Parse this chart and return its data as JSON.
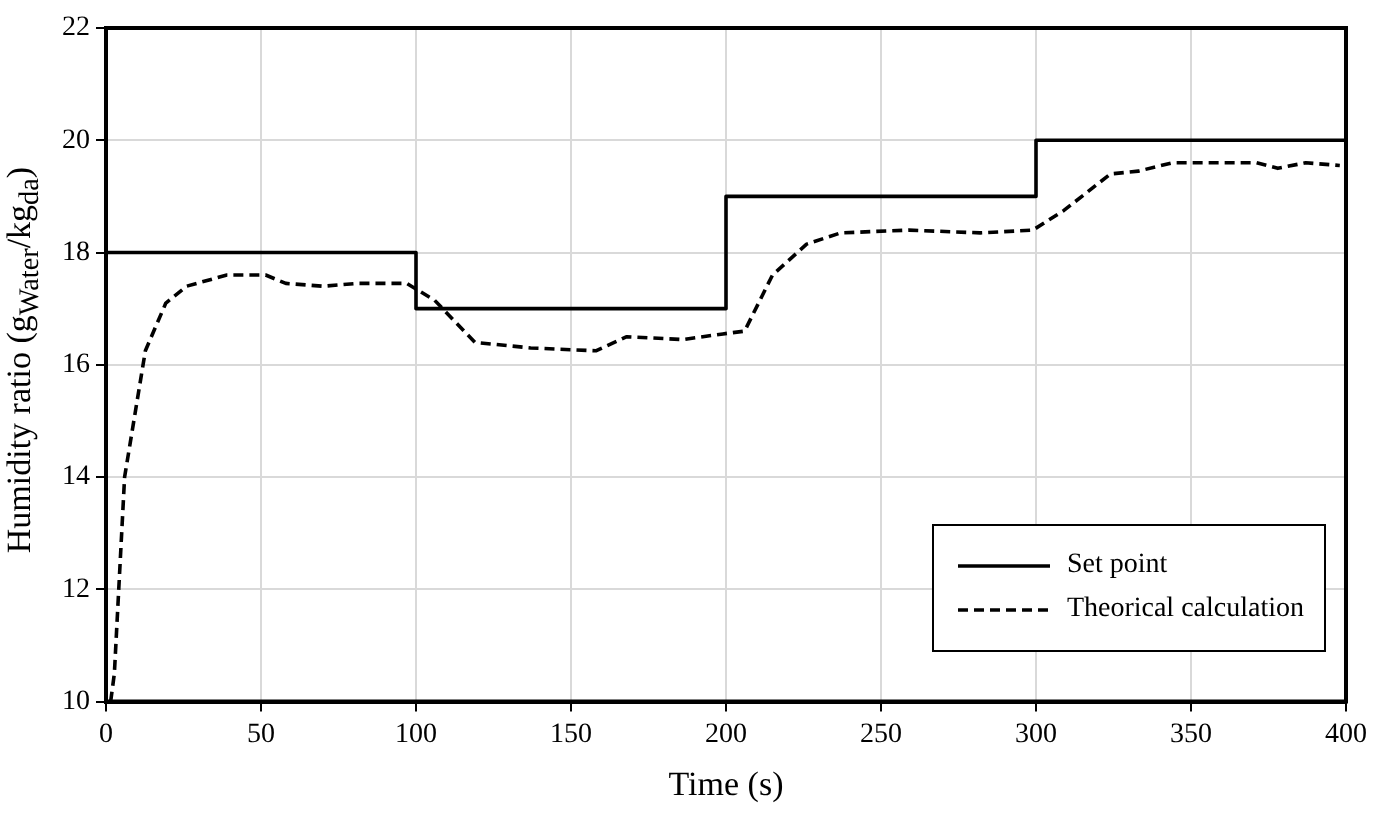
{
  "chart_data": {
    "type": "line",
    "xlabel": "Time (s)",
    "ylabel": "Humidity ratio (g$_{Water}$/kg$_{da}$)",
    "xlim": [
      0,
      400
    ],
    "xticks": [
      0,
      50,
      100,
      150,
      200,
      250,
      300,
      350,
      400
    ],
    "ylim": [
      10,
      22
    ],
    "yticks": [
      10,
      12,
      14,
      16,
      18,
      20,
      22
    ],
    "grid": true,
    "legend": "bottom right",
    "series": [
      {
        "name": "Set point",
        "type": "step",
        "color": "#000000",
        "line_style": "solid",
        "x": [
          0,
          100,
          200,
          300,
          400
        ],
        "values": [
          18,
          17,
          19,
          20,
          20
        ]
      },
      {
        "name": "Theorical calculation",
        "type": "line",
        "color": "#000000",
        "line_style": "dashed",
        "x": [
          1.5,
          2.7,
          6,
          12.7,
          19.3,
          26,
          39,
          51.5,
          58,
          70,
          81,
          97,
          106,
          119,
          137,
          158,
          168,
          186,
          199,
          206,
          215,
          226,
          237,
          259,
          282,
          299,
          309,
          324,
          333,
          344,
          371,
          378,
          387,
          398
        ],
        "values": [
          10,
          10.5,
          14,
          16.25,
          17.1,
          17.4,
          17.6,
          17.6,
          17.45,
          17.4,
          17.45,
          17.45,
          17.15,
          16.4,
          16.3,
          16.25,
          16.5,
          16.45,
          16.55,
          16.6,
          17.6,
          18.15,
          18.35,
          18.4,
          18.35,
          18.4,
          18.75,
          19.4,
          19.45,
          19.6,
          19.6,
          19.5,
          19.6,
          19.55
        ]
      }
    ]
  }
}
